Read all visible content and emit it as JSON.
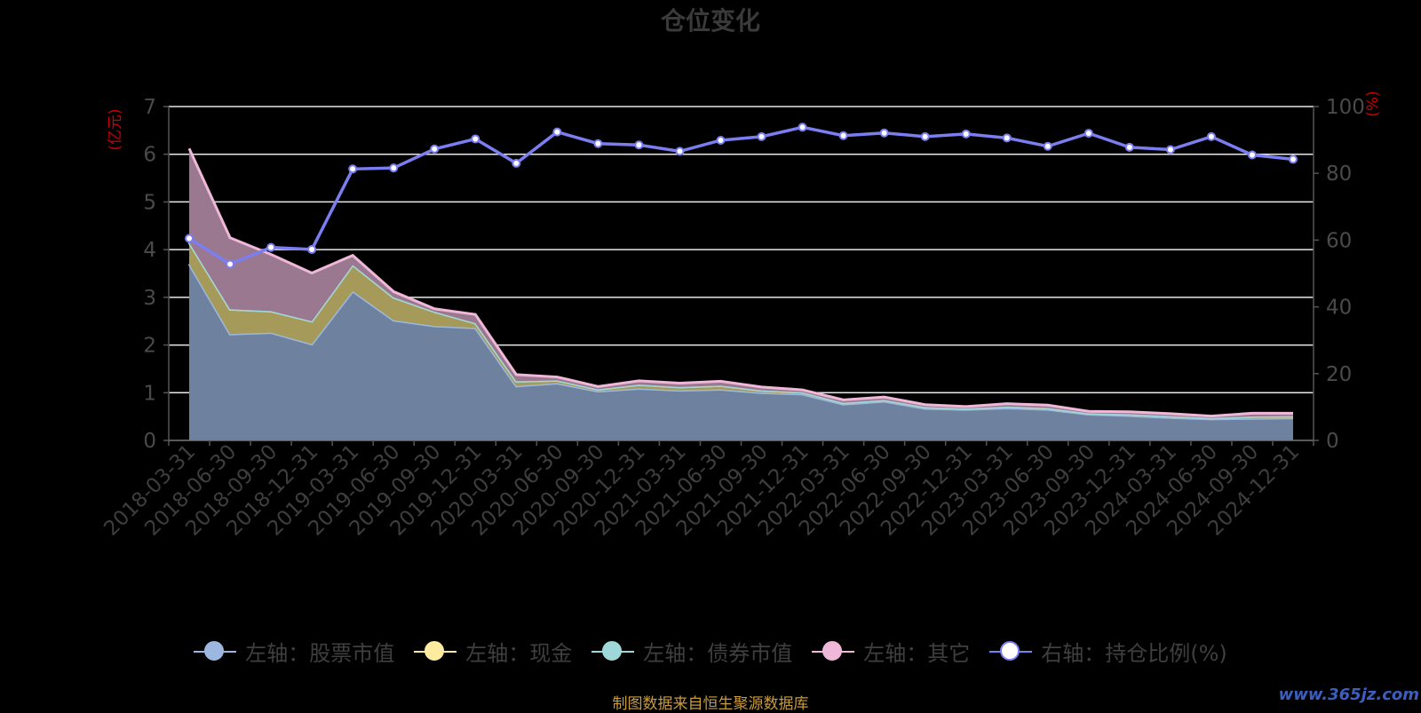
{
  "source_text": "制图数据来自恒生聚源数据库",
  "watermark": "www.365jz.com",
  "chart_data": {
    "type": "area",
    "title": "仓位变化",
    "ylabel_left": "(亿元)",
    "ylabel_right": "(%)",
    "ylim_left": [
      0,
      7
    ],
    "ylim_right": [
      0,
      100
    ],
    "yticks_left": [
      0,
      1,
      2,
      3,
      4,
      5,
      6,
      7
    ],
    "yticks_right": [
      0,
      20,
      40,
      60,
      80,
      100
    ],
    "x": [
      "2018-03-31",
      "2018-06-30",
      "2018-09-30",
      "2018-12-31",
      "2019-03-31",
      "2019-06-30",
      "2019-09-30",
      "2019-12-31",
      "2020-03-31",
      "2020-06-30",
      "2020-09-30",
      "2020-12-31",
      "2021-03-31",
      "2021-06-30",
      "2021-09-30",
      "2021-12-31",
      "2022-03-31",
      "2022-06-30",
      "2022-09-30",
      "2022-12-31",
      "2023-03-31",
      "2023-06-30",
      "2023-09-30",
      "2023-12-31",
      "2024-03-31",
      "2024-06-30",
      "2024-09-30",
      "2024-12-31"
    ],
    "grid": true,
    "legend_position": "bottom",
    "series": [
      {
        "name": "左轴：股票市值",
        "axis": "left",
        "stacked": true,
        "color": "#9db8e0",
        "fill": "#6e82a0",
        "values": [
          3.7,
          2.23,
          2.26,
          2.02,
          3.13,
          2.52,
          2.4,
          2.36,
          1.14,
          1.2,
          1.03,
          1.09,
          1.05,
          1.07,
          1.0,
          0.97,
          0.76,
          0.82,
          0.67,
          0.65,
          0.68,
          0.65,
          0.55,
          0.52,
          0.48,
          0.45,
          0.46,
          0.47
        ]
      },
      {
        "name": "左轴：现金",
        "axis": "left",
        "stacked": true,
        "color": "#fdeba0",
        "fill": "#a59a5a",
        "values": [
          0.45,
          0.52,
          0.45,
          0.48,
          0.55,
          0.48,
          0.3,
          0.1,
          0.1,
          0.06,
          0.04,
          0.08,
          0.07,
          0.08,
          0.05,
          0.04,
          0.03,
          0.03,
          0.03,
          0.02,
          0.03,
          0.03,
          0.02,
          0.03,
          0.03,
          0.02,
          0.04,
          0.04
        ]
      },
      {
        "name": "左轴：债券市值",
        "axis": "left",
        "stacked": true,
        "color": "#9fd8d8",
        "fill": "#6a9a9a",
        "values": [
          0,
          0,
          0,
          0,
          0,
          0,
          0,
          0,
          0,
          0,
          0,
          0,
          0,
          0,
          0,
          0,
          0,
          0,
          0,
          0,
          0,
          0,
          0,
          0,
          0,
          0,
          0,
          0
        ]
      },
      {
        "name": "左轴：其它",
        "axis": "left",
        "stacked": true,
        "color": "#f0b8d8",
        "fill": "#9a7890",
        "values": [
          1.97,
          1.5,
          1.19,
          1.01,
          0.2,
          0.12,
          0.06,
          0.18,
          0.14,
          0.07,
          0.06,
          0.08,
          0.08,
          0.09,
          0.07,
          0.05,
          0.06,
          0.06,
          0.05,
          0.04,
          0.06,
          0.06,
          0.04,
          0.05,
          0.05,
          0.04,
          0.07,
          0.06
        ]
      },
      {
        "name": "右轴：持仓比例(%)",
        "axis": "right",
        "stacked": false,
        "color": "#7b7ef0",
        "fill": "none",
        "values": [
          60.5,
          52.8,
          57.8,
          57.2,
          81.3,
          81.6,
          87.3,
          90.3,
          83.0,
          92.4,
          88.9,
          88.5,
          86.6,
          89.9,
          91.0,
          93.8,
          91.3,
          92.1,
          91.0,
          91.8,
          90.6,
          88.1,
          92.0,
          87.8,
          87.1,
          91.0,
          85.5,
          84.2
        ]
      }
    ]
  }
}
